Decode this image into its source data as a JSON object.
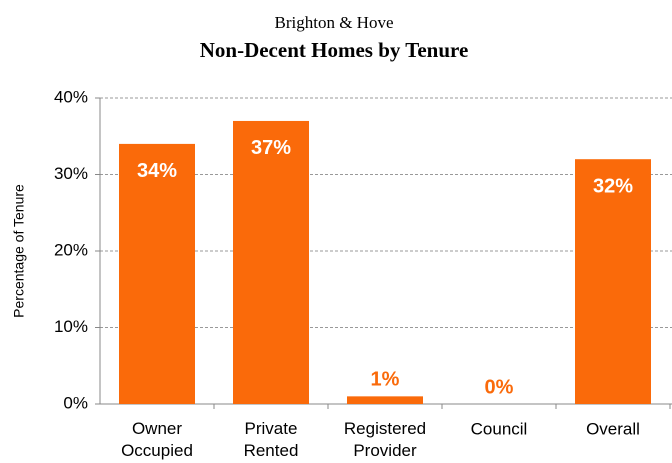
{
  "chart_data": {
    "type": "bar",
    "subtitle": "Brighton & Hove",
    "title": "Non-Decent Homes by Tenure",
    "y_label": "Percentage of Tenure",
    "categories": [
      "Owner Occupied",
      "Private Rented",
      "Registered Provider",
      "Council",
      "Overall"
    ],
    "values": [
      34,
      37,
      1,
      0,
      32
    ],
    "value_labels": [
      "34%",
      "37%",
      "1%",
      "0%",
      "32%"
    ],
    "color": "#fa6a0a",
    "ylim": [
      0,
      40
    ],
    "yticks": [
      {
        "value": 0,
        "label": "0%"
      },
      {
        "value": 10,
        "label": "10%"
      },
      {
        "value": 20,
        "label": "20%"
      },
      {
        "value": 30,
        "label": "30%"
      },
      {
        "value": 40,
        "label": "40%"
      }
    ],
    "grid": true
  }
}
